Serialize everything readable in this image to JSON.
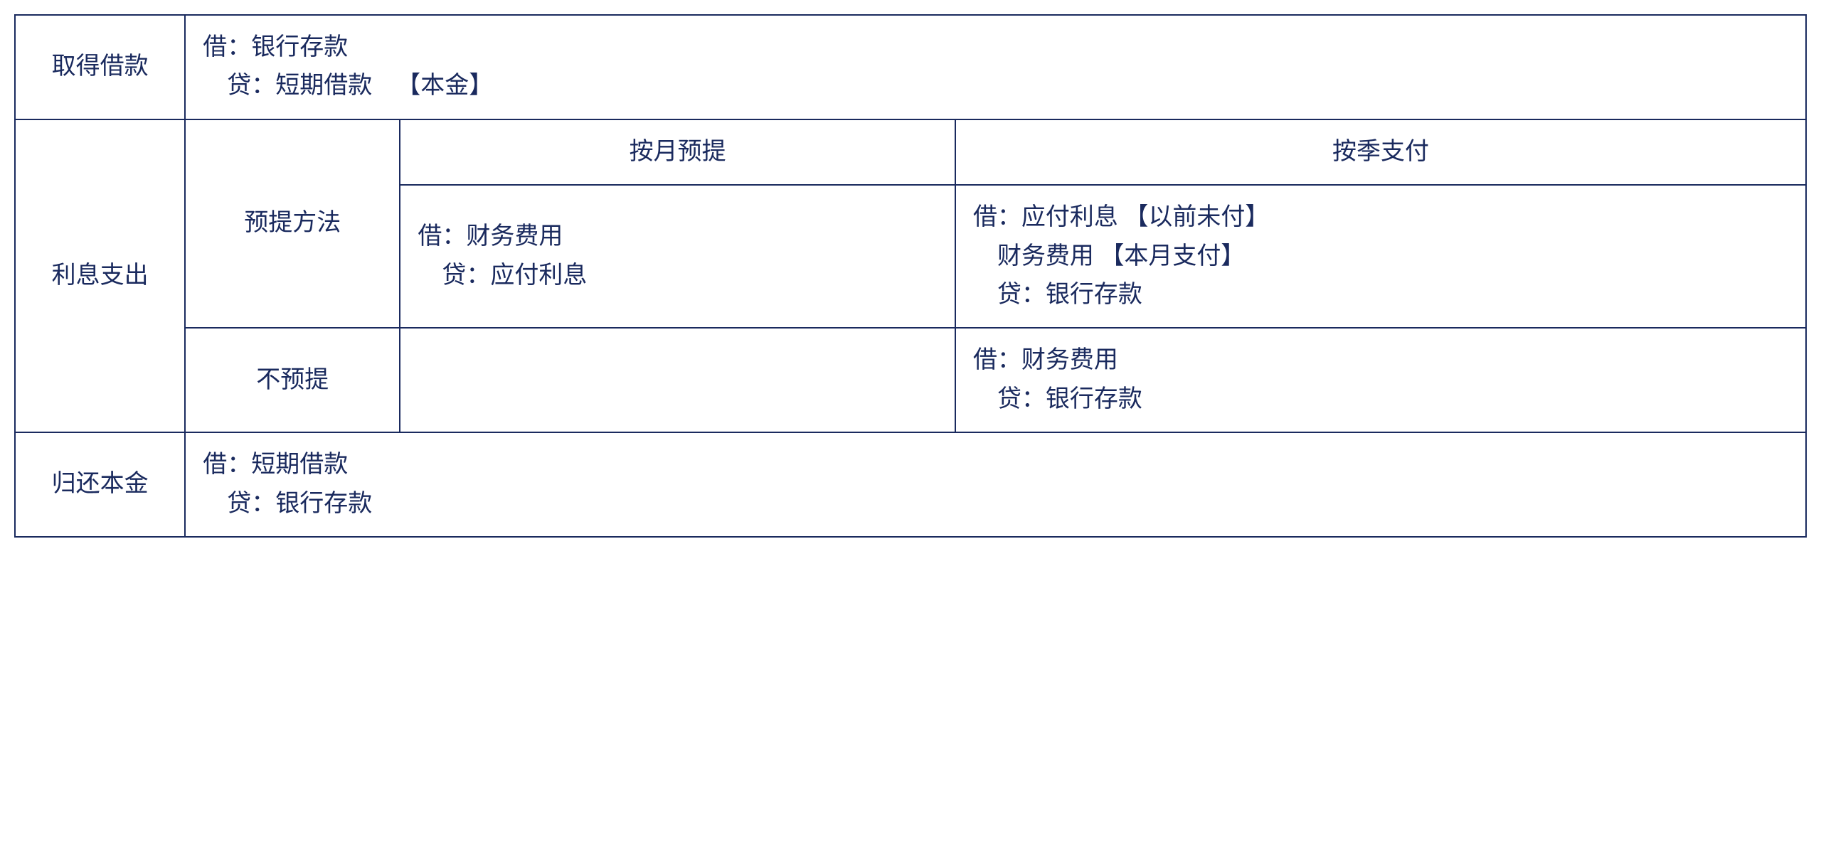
{
  "table": {
    "structure_type": "table",
    "border_color": "#1a2a5e",
    "text_color": "#1a2a5e",
    "background_color": "#ffffff",
    "font_size_pt": 20,
    "font_family": "SimSun",
    "column_widths_pct": [
      9.5,
      12,
      31,
      47.5
    ],
    "rows": {
      "r1": {
        "c1": "取得借款",
        "c2_span": "借：银行存款\n    贷：短期借款    【本金】"
      },
      "r2": {
        "c1": "利息支出",
        "c2": "预提方法",
        "c3_header": "按月预提",
        "c4_header": "按季支付",
        "c3_body": "借：财务费用\n    贷：应付利息",
        "c4_body": "借：应付利息 【以前未付】\n    财务费用 【本月支付】\n    贷：银行存款"
      },
      "r3": {
        "c2": "不预提",
        "c3": "",
        "c4": "借：财务费用\n    贷：银行存款"
      },
      "r4": {
        "c1": "归还本金",
        "c2_span": "借：短期借款\n    贷：银行存款"
      }
    }
  }
}
